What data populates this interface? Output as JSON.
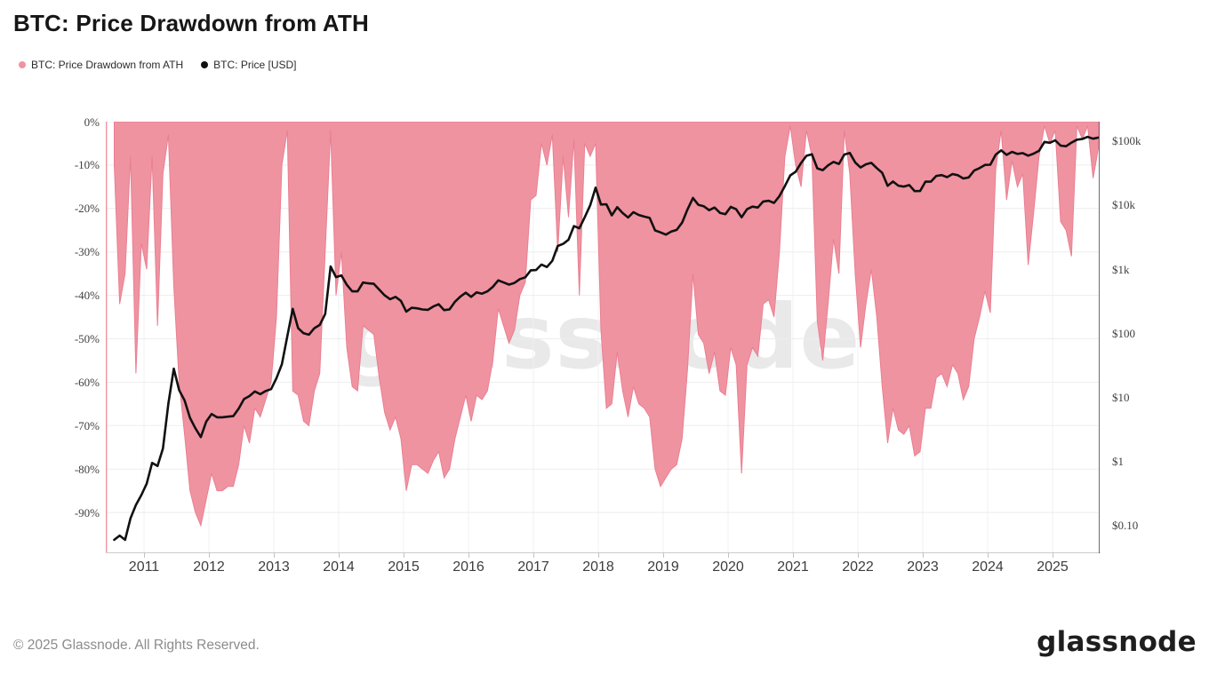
{
  "page": {
    "title": "BTC: Price Drawdown from ATH"
  },
  "branding": {
    "watermark": "glassnode",
    "wordmark": "glassnode"
  },
  "footer": {
    "copyright": "© 2025 Glassnode. All Rights Reserved."
  },
  "chart_data": {
    "type": "area+line",
    "title": "BTC: Price Drawdown from ATH",
    "grid": true,
    "legend_position": "top-left",
    "x_axis": {
      "start": "2010-07",
      "freq": "monthly",
      "tick_labels": [
        "2011",
        "2012",
        "2013",
        "2014",
        "2015",
        "2016",
        "2017",
        "2018",
        "2019",
        "2020",
        "2021",
        "2022",
        "2023",
        "2024",
        "2025"
      ]
    },
    "y_left": {
      "title": "Price Drawdown from ATH",
      "unit": "%",
      "range": [
        0,
        -100
      ],
      "ticks": [
        "0%",
        "-10%",
        "-20%",
        "-30%",
        "-40%",
        "-50%",
        "-60%",
        "-70%",
        "-80%",
        "-90%"
      ]
    },
    "y_right": {
      "title": "Price USD",
      "scale": "log",
      "ticks": [
        "$100k",
        "$10k",
        "$1k",
        "$100",
        "$10",
        "$1",
        "$0.10"
      ]
    },
    "series": [
      {
        "name": "BTC: Price Drawdown from ATH",
        "type": "area",
        "axis": "left",
        "unit": "%",
        "color": "#ef93a1",
        "values": [
          -10,
          -42,
          -35,
          -8,
          -58,
          -28,
          -34,
          -8,
          -47,
          -12,
          -3,
          -38,
          -60,
          -72,
          -85,
          -90,
          -93,
          -87,
          -81,
          -85,
          -85,
          -84,
          -84,
          -79,
          -70,
          -74,
          -66,
          -68,
          -64,
          -60,
          -45,
          -10,
          -2,
          -62,
          -63,
          -69,
          -70,
          -62,
          -58,
          -30,
          -2,
          -40,
          -30,
          -52,
          -61,
          -62,
          -47,
          -48,
          -49,
          -59,
          -67,
          -71,
          -68,
          -73,
          -85,
          -79,
          -79,
          -80,
          -81,
          -78,
          -76,
          -82,
          -80,
          -73,
          -68,
          -63,
          -69,
          -63,
          -64,
          -62,
          -55,
          -43,
          -47,
          -51,
          -48,
          -40,
          -37,
          -18,
          -17,
          -5,
          -10,
          -3,
          -30,
          -8,
          -22,
          -4,
          -40,
          -5,
          -8,
          -5,
          -48,
          -66,
          -65,
          -53,
          -62,
          -68,
          -61,
          -65,
          -66,
          -68,
          -80,
          -84,
          -82,
          -80,
          -79,
          -73,
          -57,
          -35,
          -49,
          -51,
          -58,
          -53,
          -62,
          -63,
          -52,
          -56,
          -81,
          -56,
          -52,
          -54,
          -42,
          -41,
          -45,
          -30,
          -8,
          -1,
          -10,
          -15,
          -2,
          -8,
          -46,
          -55,
          -42,
          -27,
          -35,
          -2,
          -12,
          -35,
          -52,
          -42,
          -34,
          -45,
          -61,
          -74,
          -66,
          -71,
          -72,
          -70,
          -77,
          -76,
          -66,
          -66,
          -59,
          -58,
          -61,
          -56,
          -58,
          -64,
          -61,
          -50,
          -45,
          -39,
          -44,
          -11,
          -2,
          -18,
          -9,
          -15,
          -12,
          -33,
          -21,
          -8,
          -1,
          -5,
          -2,
          -23,
          -25,
          -31,
          -1,
          -4,
          -1,
          -13,
          -6
        ]
      },
      {
        "name": "BTC: Price [USD]",
        "type": "line",
        "axis": "right",
        "unit": "USD",
        "color": "#111111",
        "values": [
          0.06,
          0.07,
          0.06,
          0.13,
          0.21,
          0.3,
          0.45,
          0.95,
          0.85,
          1.6,
          8.0,
          28,
          13,
          9,
          4.8,
          3.3,
          2.4,
          4.2,
          5.5,
          4.9,
          4.9,
          5.0,
          5.1,
          6.7,
          9.4,
          10.5,
          12.4,
          11.2,
          12.6,
          13.5,
          20,
          33,
          90,
          240,
          120,
          100,
          95,
          120,
          135,
          200,
          1100,
          750,
          800,
          570,
          450,
          450,
          620,
          600,
          590,
          480,
          390,
          340,
          370,
          320,
          218,
          250,
          245,
          235,
          232,
          262,
          284,
          230,
          236,
          310,
          375,
          430,
          370,
          435,
          415,
          450,
          530,
          670,
          620,
          575,
          610,
          700,
          745,
          960,
          970,
          1180,
          1080,
          1350,
          2300,
          2480,
          2870,
          4700,
          4340,
          6450,
          9900,
          18700,
          10200,
          10300,
          6900,
          9250,
          7500,
          6400,
          7750,
          7000,
          6600,
          6300,
          4020,
          3740,
          3460,
          3850,
          4100,
          5320,
          8550,
          12900,
          10100,
          9600,
          8300,
          9150,
          7550,
          7190,
          9350,
          8600,
          6440,
          8620,
          9450,
          9140,
          11350,
          11650,
          10780,
          13800,
          19700,
          28990,
          33100,
          45200,
          58800,
          62000,
          37300,
          35000,
          41600,
          47100,
          43800,
          61300,
          65000,
          46200,
          38500,
          43200,
          45500,
          37650,
          31800,
          19900,
          23300,
          20050,
          19400,
          20500,
          16500,
          16550,
          23100,
          23150,
          28500,
          29250,
          27200,
          30480,
          29230,
          25930,
          26970,
          34500,
          37700,
          42280,
          42580,
          61200,
          71300,
          60640,
          67500,
          62700,
          64600,
          58970,
          63330,
          70200,
          96400,
          93400,
          102400,
          84350,
          82550,
          94200,
          104600,
          107100,
          115800,
          108200,
          113000
        ]
      }
    ]
  }
}
